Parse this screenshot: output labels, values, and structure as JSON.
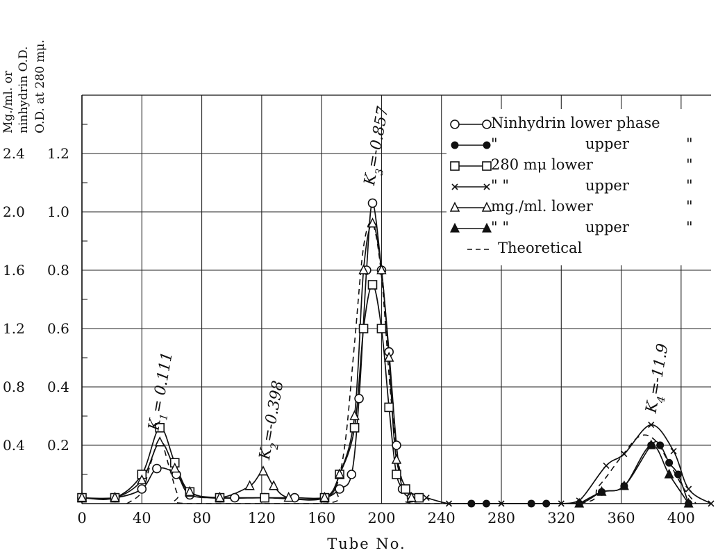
{
  "chart_data": {
    "type": "line",
    "xlabel": "Tube No.",
    "ylabel_left": "Mg./ml. or ninhydrin O.D.",
    "ylabel_right": "O.D. at 280 mμ.",
    "xlim": [
      0,
      420
    ],
    "ylim_od": [
      0,
      1.4
    ],
    "x_ticks": [
      "0",
      "40",
      "80",
      "120",
      "160",
      "200",
      "240",
      "280",
      "320",
      "360",
      "400"
    ],
    "y_ticks_od": [
      "0.2",
      "0.4",
      "0.6",
      "0.8",
      "1.0",
      "1.2"
    ],
    "y_ticks_mg": [
      "0.4",
      "0.8",
      "1.2",
      "1.6",
      "2.0",
      "2.4"
    ],
    "grid": true,
    "legend_position": "top-right",
    "annotations": [
      {
        "prefix": "K",
        "sub": "1",
        "value": "= 0.111",
        "x": 52
      },
      {
        "prefix": "K",
        "sub": "2",
        "value": "=-0.398",
        "x": 126
      },
      {
        "prefix": "K",
        "sub": "3",
        "value": "=-0.857",
        "x": 196
      },
      {
        "prefix": "K",
        "sub": "4",
        "value": "=-11.9",
        "x": 384
      }
    ],
    "series": [
      {
        "name": "Ninhydrin lower phase",
        "marker": "open-circle",
        "x": [
          0,
          22,
          40,
          50,
          63,
          72,
          92,
          102,
          122,
          142,
          162,
          172,
          180,
          185,
          190,
          194,
          200,
          205,
          210,
          214,
          220
        ],
        "y": [
          0.02,
          0.02,
          0.05,
          0.12,
          0.1,
          0.03,
          0.02,
          0.02,
          0.02,
          0.02,
          0.02,
          0.05,
          0.1,
          0.36,
          0.8,
          1.03,
          0.8,
          0.52,
          0.2,
          0.05,
          0.02
        ]
      },
      {
        "name": "upper",
        "legend_label": "\"",
        "marker": "filled-circle",
        "x": [
          260,
          270,
          300,
          310,
          332,
          347,
          362,
          380,
          386,
          392,
          398,
          405
        ],
        "y": [
          0.0,
          0.0,
          0.0,
          0.0,
          0.0,
          0.04,
          0.06,
          0.2,
          0.2,
          0.14,
          0.1,
          0.0
        ]
      },
      {
        "name": "280 mμ lower",
        "marker": "open-square",
        "x": [
          0,
          22,
          40,
          52,
          62,
          72,
          92,
          122,
          162,
          172,
          182,
          188,
          194,
          200,
          205,
          210,
          216,
          225
        ],
        "y": [
          0.02,
          0.02,
          0.1,
          0.26,
          0.14,
          0.04,
          0.02,
          0.02,
          0.02,
          0.1,
          0.26,
          0.6,
          0.75,
          0.6,
          0.33,
          0.1,
          0.05,
          0.02
        ]
      },
      {
        "name": "upper",
        "legend_label": "\"   \"",
        "marker": "cross",
        "x": [
          230,
          245,
          260,
          280,
          300,
          320,
          332,
          350,
          362,
          380,
          395,
          405,
          420
        ],
        "y": [
          0.02,
          0.0,
          0.0,
          0.0,
          0.0,
          0.0,
          0.01,
          0.13,
          0.17,
          0.27,
          0.18,
          0.05,
          0.0
        ]
      },
      {
        "name": "mg./ml. lower",
        "marker": "open-triangle",
        "x": [
          0,
          22,
          40,
          52,
          62,
          72,
          92,
          112,
          121,
          128,
          138,
          162,
          172,
          182,
          188,
          194,
          200,
          205,
          210,
          220
        ],
        "y": [
          0.02,
          0.02,
          0.08,
          0.21,
          0.12,
          0.04,
          0.02,
          0.06,
          0.11,
          0.06,
          0.02,
          0.02,
          0.1,
          0.3,
          0.8,
          0.96,
          0.8,
          0.5,
          0.15,
          0.02
        ]
      },
      {
        "name": "upper",
        "legend_label": "\"   \"",
        "marker": "filled-triangle",
        "x": [
          332,
          347,
          362,
          380,
          392,
          405
        ],
        "y": [
          0.0,
          0.04,
          0.06,
          0.2,
          0.1,
          0.0
        ]
      },
      {
        "name": "Theoretical",
        "marker": "none",
        "style": "dashed",
        "x": [
          30,
          40,
          46,
          52,
          58,
          64,
          70,
          162,
          170,
          176,
          182,
          188,
          194,
          200,
          206,
          212,
          218,
          226,
          330,
          345,
          360,
          372,
          382,
          392,
          402,
          410
        ],
        "y": [
          0.0,
          0.04,
          0.14,
          0.22,
          0.13,
          0.03,
          0.0,
          0.0,
          0.06,
          0.22,
          0.55,
          0.88,
          0.96,
          0.78,
          0.38,
          0.12,
          0.03,
          0.0,
          0.0,
          0.06,
          0.16,
          0.23,
          0.22,
          0.14,
          0.05,
          0.0
        ]
      }
    ],
    "legend": {
      "rows": [
        {
          "sym": "open-circle",
          "text": "Ninhydrin lower phase",
          "cont": "",
          "q": ""
        },
        {
          "sym": "filled-circle",
          "text": "\"",
          "cont": "upper",
          "q": "\""
        },
        {
          "sym": "open-square",
          "text": "280 mμ  lower",
          "cont": "",
          "q": "\""
        },
        {
          "sym": "cross",
          "text": "\"   \"",
          "cont": "upper",
          "q": "\""
        },
        {
          "sym": "open-triangle",
          "text": "mg./ml.  lower",
          "cont": "",
          "q": "\""
        },
        {
          "sym": "filled-triangle",
          "text": "\"   \"",
          "cont": "upper",
          "q": "\""
        },
        {
          "sym": "dashed",
          "text": "Theoretical",
          "cont": "",
          "q": ""
        }
      ]
    }
  }
}
